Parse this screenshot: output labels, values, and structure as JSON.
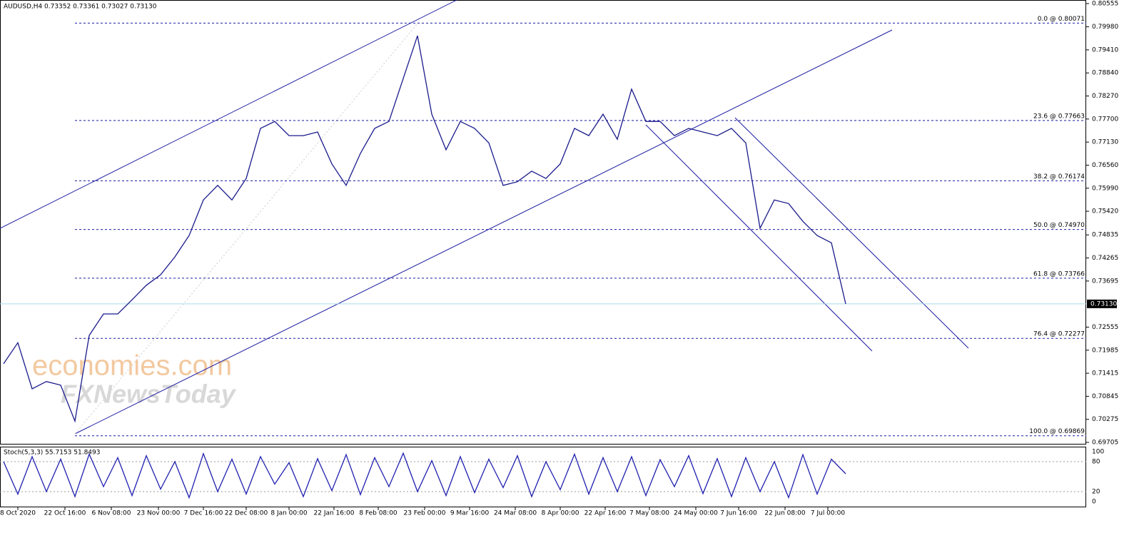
{
  "header": {
    "symbol": "AUDUSD,H4",
    "quote": "0.73352 0.73361 0.73027 0.73130"
  },
  "watermark": {
    "brand": "economies.com",
    "sub": "FXNewsToday"
  },
  "chart_data": [
    {
      "type": "line",
      "color": "#1a1a8c",
      "xlim": [
        0,
        76
      ],
      "xticks": [
        {
          "value": 1,
          "label": "8 Oct 2020"
        },
        {
          "value": 4.3,
          "label": "22 Oct 16:00"
        },
        {
          "value": 7.55,
          "label": "6 Nov 08:00"
        },
        {
          "value": 10.85,
          "label": "23 Nov 00:00"
        },
        {
          "value": 14,
          "label": "7 Dec 16:00"
        },
        {
          "value": 17,
          "label": "22 Dec 08:00"
        },
        {
          "value": 20,
          "label": "8 Jan 00:00"
        },
        {
          "value": 23.15,
          "label": "22 Jan 16:00"
        },
        {
          "value": 26.25,
          "label": "8 Feb 08:00"
        },
        {
          "value": 29.5,
          "label": "23 Feb 00:00"
        },
        {
          "value": 32.65,
          "label": "9 Mar 16:00"
        },
        {
          "value": 35.85,
          "label": "24 Mar 08:00"
        },
        {
          "value": 39,
          "label": "8 Apr 00:00"
        },
        {
          "value": 42.15,
          "label": "22 Apr 16:00"
        },
        {
          "value": 45.25,
          "label": "7 May 08:00"
        },
        {
          "value": 48.5,
          "label": "24 May 00:00"
        },
        {
          "value": 51.5,
          "label": "7 Jun 16:00"
        },
        {
          "value": 54.75,
          "label": "22 Jun 08:00"
        },
        {
          "value": 57.75,
          "label": "7 Jul 00:00"
        }
      ],
      "x": [
        0,
        1,
        2,
        3,
        4,
        5,
        6,
        7,
        8,
        9,
        10,
        11,
        12,
        13,
        14,
        15,
        16,
        17,
        18,
        19,
        20,
        21,
        22,
        23,
        24,
        25,
        26,
        27,
        28,
        29,
        30,
        31,
        32,
        33,
        34,
        35,
        36,
        37,
        38,
        39,
        40,
        41,
        42,
        43,
        44,
        45,
        46,
        47,
        48,
        49,
        50,
        51,
        52,
        53,
        54,
        55,
        56,
        57,
        58,
        59
      ],
      "values": [
        0.7165,
        0.7217,
        0.7103,
        0.7121,
        0.7112,
        0.7023,
        0.7235,
        0.7288,
        0.7288,
        0.7323,
        0.7359,
        0.7385,
        0.7429,
        0.7482,
        0.757,
        0.7606,
        0.757,
        0.7623,
        0.7747,
        0.7764,
        0.7729,
        0.7729,
        0.7738,
        0.7659,
        0.7606,
        0.7685,
        0.7747,
        0.7764,
        0.787,
        0.7976,
        0.7782,
        0.7694,
        0.7764,
        0.7747,
        0.7711,
        0.7606,
        0.7615,
        0.7641,
        0.7623,
        0.7659,
        0.7747,
        0.7729,
        0.7782,
        0.772,
        0.7844,
        0.7764,
        0.7764,
        0.7729,
        0.7747,
        0.7738,
        0.7729,
        0.7747,
        0.7711,
        0.75,
        0.757,
        0.7561,
        0.7517,
        0.7482,
        0.7464,
        0.7313
      ],
      "ylim": [
        0.69705,
        0.80555
      ],
      "yticks": [
        0.80555,
        {
          "value": 0.7998,
          "label": "0.79980"
        },
        {
          "value": 0.7941,
          "label": "0.79410"
        },
        {
          "value": 0.7884,
          "label": "0.78840"
        },
        {
          "value": 0.7827,
          "label": "0.78270"
        },
        {
          "value": 0.777,
          "label": "0.77700"
        },
        {
          "value": 0.7713,
          "label": "0.77130"
        },
        {
          "value": 0.7656,
          "label": "0.76560"
        },
        {
          "value": 0.7599,
          "label": "0.75990"
        },
        {
          "value": 0.7542,
          "label": "0.75420"
        },
        0.74835,
        0.74265,
        0.73695,
        0.72555,
        0.71985,
        0.71415,
        0.70845,
        0.70275,
        0.69705
      ],
      "current_price": {
        "value": 0.7313,
        "label": "0.73130"
      },
      "levels": [
        {
          "value": 0.80071,
          "label": "0.0 @ 0.80071"
        },
        {
          "value": 0.77663,
          "label": "23.6 @ 0.77663"
        },
        {
          "value": 0.76174,
          "label": "38.2 @ 0.76174"
        },
        {
          "value": 0.7497,
          "label": "50.0 @ 0.74970"
        },
        {
          "value": 0.73766,
          "label": "61.8 @ 0.73766"
        },
        {
          "value": 0.72277,
          "label": "76.4 @ 0.72277"
        },
        {
          "value": 0.69869,
          "label": "100.0 @ 0.69869"
        }
      ]
    },
    {
      "type": "line",
      "title": "Stoch(5,3,3) 55.7153 51.8493",
      "color": "#2020b0",
      "x": [
        0,
        1,
        2,
        3,
        4,
        5,
        6,
        7,
        8,
        9,
        10,
        11,
        12,
        13,
        14,
        15,
        16,
        17,
        18,
        19,
        20,
        21,
        22,
        23,
        24,
        25,
        26,
        27,
        28,
        29,
        30,
        31,
        32,
        33,
        34,
        35,
        36,
        37,
        38,
        39,
        40,
        41,
        42,
        43,
        44,
        45,
        46,
        47,
        48,
        49,
        50,
        51,
        52,
        53,
        54,
        55,
        56,
        57,
        58,
        59
      ],
      "values": [
        80,
        15,
        90,
        20,
        85,
        10,
        95,
        30,
        88,
        12,
        92,
        25,
        80,
        8,
        96,
        20,
        85,
        15,
        90,
        35,
        78,
        10,
        86,
        22,
        94,
        14,
        88,
        30,
        97,
        20,
        82,
        12,
        90,
        18,
        85,
        28,
        92,
        10,
        80,
        24,
        95,
        15,
        88,
        20,
        90,
        12,
        84,
        30,
        92,
        16,
        86,
        10,
        88,
        20,
        80,
        8,
        94,
        15,
        85,
        55.7
      ],
      "ylim": [
        0,
        100
      ],
      "yticks": [
        0,
        20,
        80,
        100
      ]
    }
  ]
}
